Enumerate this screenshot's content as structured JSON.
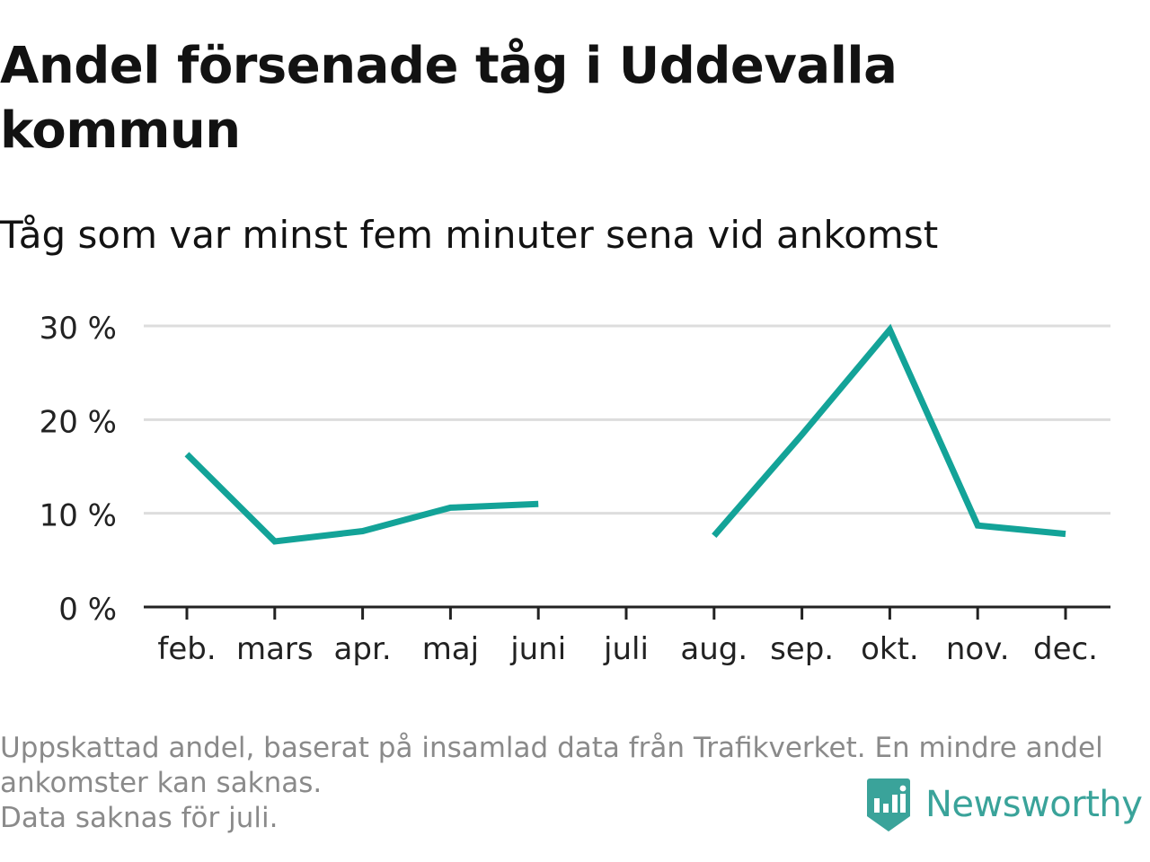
{
  "title": "Andel försenade tåg i Uddevalla kommun",
  "subtitle": "Tåg som var minst fem minuter sena vid ankomst",
  "footnote": {
    "line1": "Uppskattad andel, baserat på insamlad data från Trafikverket. En mindre andel ankomster kan saknas.",
    "line2": "Data saknas för juli."
  },
  "brand": {
    "name": "Newsworthy",
    "color": "#3aa39a",
    "icon": "newsworthy-logo-icon"
  },
  "chart_data": {
    "type": "line",
    "categories": [
      "feb.",
      "mars",
      "apr.",
      "maj",
      "juni",
      "juli",
      "aug.",
      "sep.",
      "okt.",
      "nov.",
      "dec."
    ],
    "series": [
      {
        "values": [
          16.3,
          7.0,
          8.1,
          10.6,
          11.0,
          null,
          7.6,
          18.4,
          29.6,
          8.7,
          7.8
        ],
        "color": "#13a398"
      }
    ],
    "y_ticks": [
      0,
      10,
      20,
      30
    ],
    "y_tick_labels": [
      "0 %",
      "10 %",
      "20 %",
      "30 %"
    ],
    "ylim": [
      0,
      30
    ],
    "grid": true,
    "legend": false,
    "xlabel": "",
    "ylabel": ""
  }
}
